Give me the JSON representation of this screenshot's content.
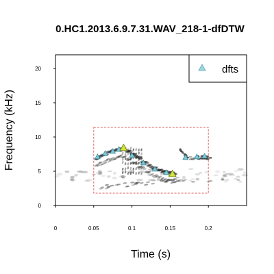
{
  "chart_data": {
    "type": "scatter",
    "title": "0.HC1.2013.6.9.7.31.WAV_218-1-dfDTW",
    "xlabel": "Time (s)",
    "ylabel": "Frequency (kHz)",
    "xlim": [
      0,
      0.25
    ],
    "ylim": [
      0,
      22
    ],
    "x_ticks": [
      0,
      0.05,
      0.1,
      0.15,
      0.2
    ],
    "x_tick_labels": [
      "0",
      "0.05",
      "0.1",
      "0.15",
      "0.2"
    ],
    "y_ticks": [
      0,
      5,
      10,
      15,
      20
    ],
    "y_tick_labels": [
      "0",
      "5",
      "10",
      "15",
      "20"
    ],
    "grid": false,
    "legend": {
      "position": "top-right",
      "entries": [
        "dfts"
      ]
    },
    "series": [
      {
        "name": "dfts",
        "marker": "triangle",
        "color": "#7ec8d6",
        "x": [
          0.055,
          0.065,
          0.075,
          0.083,
          0.089,
          0.1,
          0.115,
          0.13,
          0.145,
          0.153,
          0.17,
          0.185,
          0.195
        ],
        "y": [
          7.1,
          7.6,
          7.9,
          8.2,
          8.4,
          7.3,
          6.2,
          5.3,
          4.8,
          4.6,
          7.0,
          7.1,
          7.2
        ]
      }
    ],
    "highlighted_points": [
      {
        "x": 0.089,
        "y": 8.4,
        "color": "#d4e23a"
      },
      {
        "x": 0.153,
        "y": 4.6,
        "color": "#d4e23a"
      }
    ],
    "selection_box": {
      "x": [
        0.05,
        0.2
      ],
      "y": [
        1.8,
        11.4
      ],
      "color": "#e06060",
      "style": "dashed"
    }
  }
}
